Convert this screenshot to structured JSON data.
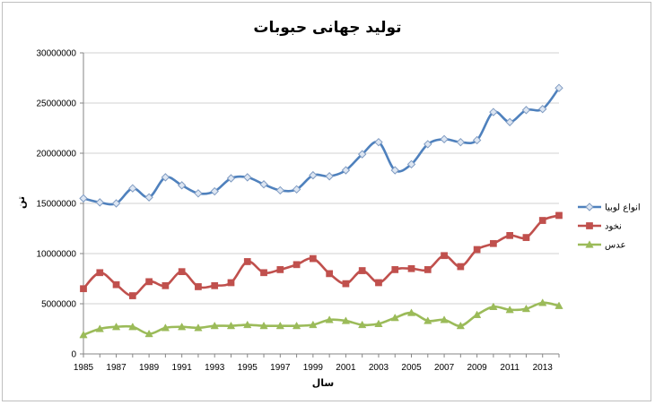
{
  "chart_data": {
    "type": "line",
    "title": "تولید جهانی حبوبات",
    "xlabel": "سال",
    "ylabel": "تن",
    "xlim": [
      1985,
      2014
    ],
    "ylim": [
      0,
      30000000
    ],
    "yticks": [
      0,
      5000000,
      10000000,
      15000000,
      20000000,
      25000000,
      30000000
    ],
    "ytick_labels": [
      "0",
      "5000000",
      "10000000",
      "15000000",
      "20000000",
      "25000000",
      "30000000"
    ],
    "xticks": [
      1985,
      1987,
      1989,
      1991,
      1993,
      1995,
      1997,
      1999,
      2001,
      2003,
      2005,
      2007,
      2009,
      2011,
      2013
    ],
    "xtick_labels": [
      "1985",
      "1987",
      "1989",
      "1991",
      "1993",
      "1995",
      "1997",
      "1999",
      "2001",
      "2003",
      "2005",
      "2007",
      "2009",
      "2011",
      "2013"
    ],
    "grid": "horizontal",
    "legend_position": "right",
    "x": [
      1985,
      1986,
      1987,
      1988,
      1989,
      1990,
      1991,
      1992,
      1993,
      1994,
      1995,
      1996,
      1997,
      1998,
      1999,
      2000,
      2001,
      2002,
      2003,
      2004,
      2005,
      2006,
      2007,
      2008,
      2009,
      2010,
      2011,
      2012,
      2013,
      2014
    ],
    "series": [
      {
        "name": "انواع لوبیا",
        "color": "#4f81bd",
        "marker": "diamond",
        "values": [
          15500000,
          15100000,
          15000000,
          16500000,
          15600000,
          17600000,
          16800000,
          16000000,
          16200000,
          17500000,
          17600000,
          16900000,
          16300000,
          16400000,
          17800000,
          17700000,
          18300000,
          19900000,
          21100000,
          18300000,
          18900000,
          20900000,
          21400000,
          21100000,
          21300000,
          24100000,
          23100000,
          24300000,
          24400000,
          26500000
        ]
      },
      {
        "name": "نخود",
        "color": "#c0504d",
        "marker": "square",
        "values": [
          6500000,
          8100000,
          6900000,
          5800000,
          7200000,
          6800000,
          8200000,
          6700000,
          6800000,
          7100000,
          9200000,
          8100000,
          8400000,
          8900000,
          9500000,
          8000000,
          7000000,
          8300000,
          7100000,
          8400000,
          8500000,
          8400000,
          9800000,
          8700000,
          10400000,
          11000000,
          11800000,
          11600000,
          13300000,
          13800000
        ]
      },
      {
        "name": "عدس",
        "color": "#9bbb59",
        "marker": "triangle",
        "values": [
          1900000,
          2500000,
          2700000,
          2700000,
          2000000,
          2600000,
          2700000,
          2600000,
          2800000,
          2800000,
          2900000,
          2800000,
          2800000,
          2800000,
          2900000,
          3400000,
          3300000,
          2900000,
          3000000,
          3600000,
          4100000,
          3300000,
          3400000,
          2800000,
          3900000,
          4700000,
          4400000,
          4500000,
          5100000,
          4800000
        ]
      }
    ]
  }
}
